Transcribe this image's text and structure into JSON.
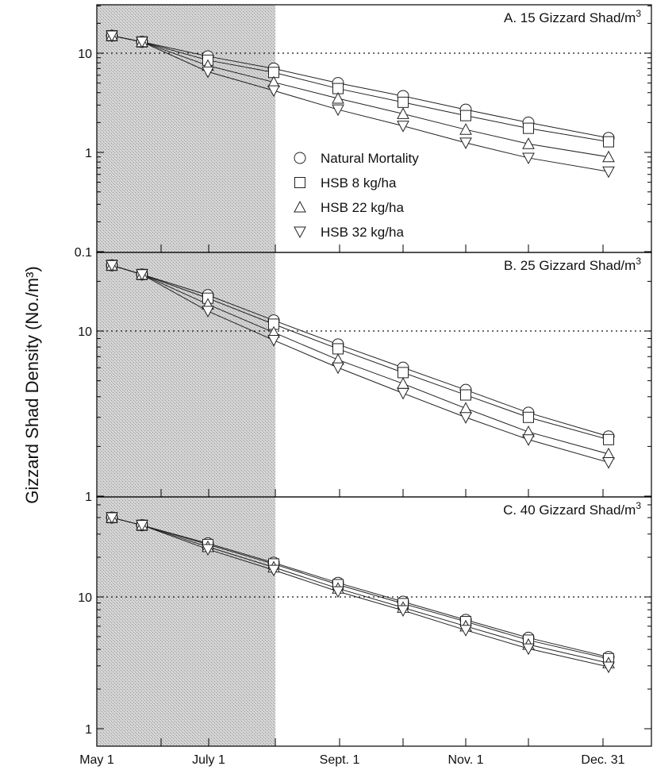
{
  "y_axis_title": "Gizzard Shad Density (No./m³)",
  "shaded_period": {
    "from": "May 1",
    "to": "Aug. 1"
  },
  "reference_line_y": 10,
  "x_tick_labels": [
    "May 1",
    "July 1",
    "Sept. 1",
    "Nov. 1",
    "Dec. 31"
  ],
  "legend": {
    "placement": "panel A, middle",
    "items": [
      {
        "marker": "circle",
        "label": "Natural Mortality"
      },
      {
        "marker": "square",
        "label": "HSB 8 kg/ha"
      },
      {
        "marker": "triangle-up",
        "label": "HSB 22 kg/ha"
      },
      {
        "marker": "triangle-down",
        "label": "HSB 32 kg/ha"
      }
    ]
  },
  "chart_data": [
    {
      "type": "line",
      "title": "A.  15 Gizzard Shad/m³",
      "xlabel": "",
      "ylabel": "Gizzard Shad Density (No./m³)",
      "y_scale": "log",
      "ylim": [
        0.1,
        30
      ],
      "y_tick_labels": [
        "0.1",
        "1",
        "10"
      ],
      "grid": false,
      "x": [
        "May 1",
        "May 16",
        "June 30",
        "July 31",
        "Aug. 31",
        "Sept. 30",
        "Oct. 31",
        "Nov. 30",
        "Dec. 31"
      ],
      "series": [
        {
          "name": "Natural Mortality",
          "values": [
            15,
            13,
            9.3,
            7.0,
            5.0,
            3.7,
            2.7,
            2.0,
            1.4
          ]
        },
        {
          "name": "HSB 8 kg/ha",
          "values": [
            15,
            13,
            8.5,
            6.4,
            4.4,
            3.2,
            2.35,
            1.75,
            1.28
          ]
        },
        {
          "name": "HSB 22 kg/ha",
          "values": [
            15,
            13,
            7.5,
            5.1,
            3.5,
            2.45,
            1.7,
            1.22,
            0.9
          ]
        },
        {
          "name": "HSB 32 kg/ha",
          "values": [
            15,
            13,
            6.5,
            4.2,
            2.7,
            1.85,
            1.25,
            0.88,
            0.64
          ]
        }
      ]
    },
    {
      "type": "line",
      "title": "B.  25 Gizzard Shad/m³",
      "xlabel": "",
      "ylabel": "Gizzard Shad Density (No./m³)",
      "y_scale": "log",
      "ylim": [
        1,
        35
      ],
      "y_tick_labels": [
        "1",
        "10"
      ],
      "grid": false,
      "x": [
        "May 1",
        "May 16",
        "June 30",
        "July 31",
        "Aug. 31",
        "Sept. 30",
        "Oct. 31",
        "Nov. 30",
        "Dec. 31"
      ],
      "series": [
        {
          "name": "Natural Mortality",
          "values": [
            25,
            22,
            16.5,
            11.6,
            8.3,
            6.0,
            4.4,
            3.2,
            2.3
          ]
        },
        {
          "name": "HSB 8 kg/ha",
          "values": [
            25,
            22,
            15.8,
            11.0,
            7.8,
            5.6,
            4.1,
            3.0,
            2.2
          ]
        },
        {
          "name": "HSB 22 kg/ha",
          "values": [
            25,
            22,
            14.5,
            9.8,
            6.7,
            4.8,
            3.4,
            2.45,
            1.8
          ]
        },
        {
          "name": "HSB 32 kg/ha",
          "values": [
            25,
            22,
            13.2,
            8.8,
            6.0,
            4.2,
            3.0,
            2.2,
            1.6
          ]
        }
      ]
    },
    {
      "type": "line",
      "title": "C.  40 Gizzard Shad/m³",
      "xlabel": "",
      "ylabel": "Gizzard Shad Density (No./m³)",
      "y_scale": "log",
      "ylim": [
        1,
        55
      ],
      "y_tick_labels": [
        "1",
        "10"
      ],
      "grid": false,
      "x": [
        "May 1",
        "May 16",
        "June 30",
        "July 31",
        "Aug. 31",
        "Sept. 30",
        "Oct. 31",
        "Nov. 30",
        "Dec. 31"
      ],
      "series": [
        {
          "name": "Natural Mortality",
          "values": [
            40,
            35,
            25.5,
            18.2,
            12.8,
            9.2,
            6.7,
            4.9,
            3.5
          ]
        },
        {
          "name": "HSB 8 kg/ha",
          "values": [
            40,
            35,
            25.0,
            17.8,
            12.4,
            8.9,
            6.5,
            4.7,
            3.4
          ]
        },
        {
          "name": "HSB 22 kg/ha",
          "values": [
            40,
            35,
            24.0,
            16.8,
            11.6,
            8.3,
            6.0,
            4.35,
            3.15
          ]
        },
        {
          "name": "HSB 32 kg/ha",
          "values": [
            40,
            35,
            23.0,
            16.0,
            11.0,
            7.9,
            5.6,
            4.05,
            2.95
          ]
        }
      ]
    }
  ]
}
